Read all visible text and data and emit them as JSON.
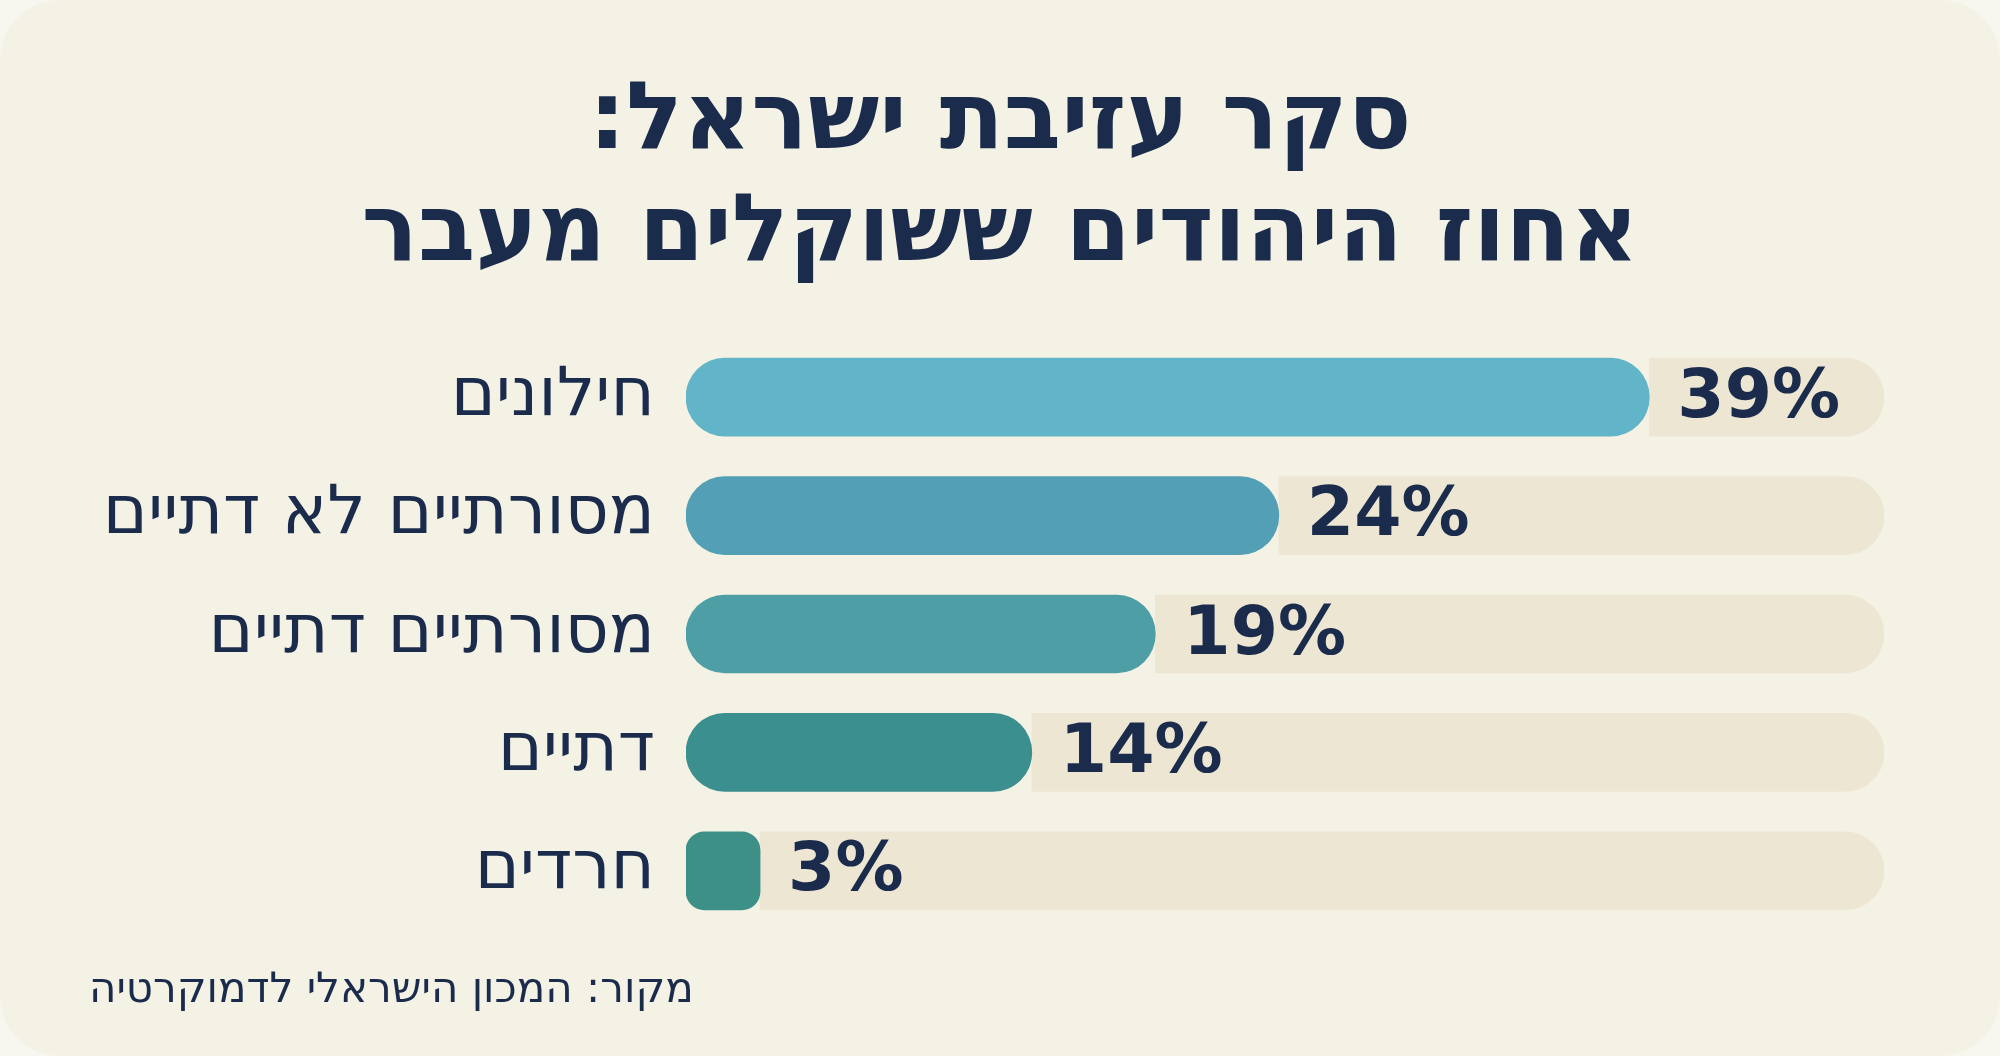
{
  "chart_data": {
    "type": "bar",
    "orientation": "horizontal",
    "stacked": true,
    "title": "סקר עזיבת ישראל:\nאחוז היהודים ששוקלים מעבר",
    "categories": [
      "חילונים",
      "מסורתיים לא דתיים",
      "מסורתיים דתיים",
      "דתיים",
      "חרדים"
    ],
    "series": [
      {
        "values": [
          39,
          24,
          19,
          14,
          3
        ],
        "colors": [
          "#62b4c8",
          "#539fb5",
          "#4d9ea5",
          "#3b8f8e",
          "#3d9088"
        ],
        "value_labels": [
          "39%",
          "24%",
          "19%",
          "14%",
          "3%"
        ]
      },
      {
        "values": [
          9.5,
          24.5,
          29.5,
          34.5,
          45.5
        ],
        "color": "#ede6d3"
      }
    ],
    "tick_labels": "y",
    "annotations": [
      "מקור: המכון הישראלי לדמוקרטיה"
    ]
  }
}
